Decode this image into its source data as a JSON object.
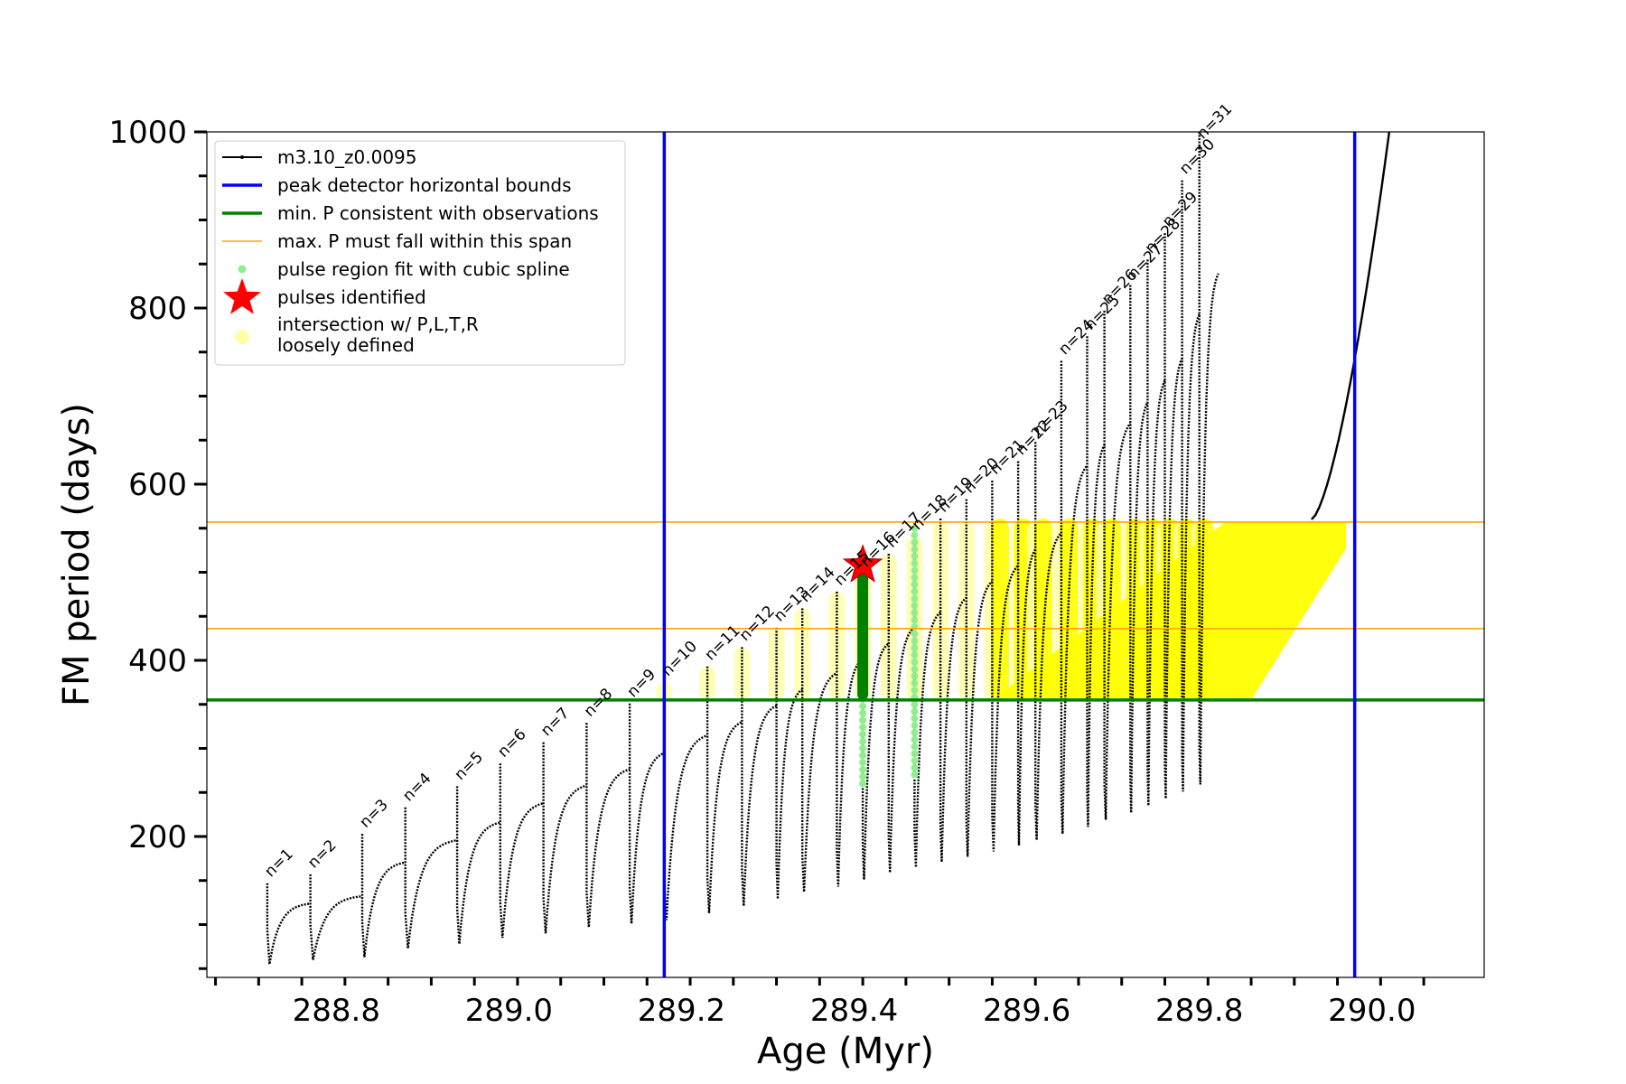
{
  "chart_data": {
    "type": "scatter",
    "xlabel": "Age (Myr)",
    "ylabel": "FM period (days)",
    "xlim": [
      288.65,
      290.13
    ],
    "ylim": [
      40,
      1000
    ],
    "x_ticks": [
      288.8,
      289.0,
      289.2,
      289.4,
      289.6,
      289.8,
      290.0
    ],
    "x_tick_labels": [
      "288.8",
      "289.0",
      "289.2",
      "289.4",
      "289.6",
      "289.8",
      "290.0"
    ],
    "y_ticks": [
      200,
      400,
      600,
      800,
      1000
    ],
    "y_tick_labels": [
      "200",
      "400",
      "600",
      "800",
      "1000"
    ],
    "grid": false,
    "legend_position": "top-left",
    "legend": [
      {
        "label": "m3.10_z0.0095",
        "style": "line-marker",
        "color": "#000000"
      },
      {
        "label": "peak detector horizontal bounds",
        "style": "line",
        "color": "#0000ff"
      },
      {
        "label": "min. P consistent with observations",
        "style": "line",
        "color": "#008000"
      },
      {
        "label": "max. P must fall within this span",
        "style": "line",
        "color": "#ffa500"
      },
      {
        "label": "pulse region fit with cubic spline",
        "style": "dot",
        "color": "#90ee90"
      },
      {
        "label": "pulses identified",
        "style": "star",
        "color": "#ff0000"
      },
      {
        "label": "intersection w/ P,L,T,R",
        "style": "blob",
        "color": "#ffffaa"
      },
      {
        "label": "loosely defined",
        "style": "text",
        "color": "#000000"
      }
    ],
    "vertical_lines": [
      {
        "name": "peak detector horizontal bounds",
        "x": 289.18,
        "color": "#0000ff"
      },
      {
        "name": "peak detector horizontal bounds",
        "x": 289.98,
        "color": "#0000ff"
      }
    ],
    "horizontal_lines": [
      {
        "name": "min. P consistent with observations",
        "y": 355,
        "color": "#008000"
      },
      {
        "name": "max. P must fall within this span",
        "y": 436,
        "color": "#ffa500"
      },
      {
        "name": "max. P must fall within this span",
        "y": 557,
        "color": "#ffa500"
      }
    ],
    "pulses": [
      {
        "label": "n=1",
        "x": 288.72,
        "peak": 147,
        "min": 55
      },
      {
        "label": "n=2",
        "x": 288.77,
        "peak": 157,
        "min": 60
      },
      {
        "label": "n=3",
        "x": 288.83,
        "peak": 203,
        "min": 63
      },
      {
        "label": "n=4",
        "x": 288.88,
        "peak": 233,
        "min": 73
      },
      {
        "label": "n=5",
        "x": 288.94,
        "peak": 257,
        "min": 78
      },
      {
        "label": "n=6",
        "x": 288.99,
        "peak": 283,
        "min": 85
      },
      {
        "label": "n=7",
        "x": 289.04,
        "peak": 307,
        "min": 90
      },
      {
        "label": "n=8",
        "x": 289.09,
        "peak": 329,
        "min": 97
      },
      {
        "label": "n=9",
        "x": 289.14,
        "peak": 351,
        "min": 101
      },
      {
        "label": "n=10",
        "x": 289.18,
        "peak": 375,
        "min": 105
      },
      {
        "label": "n=11",
        "x": 289.23,
        "peak": 393,
        "min": 113
      },
      {
        "label": "n=12",
        "x": 289.27,
        "peak": 415,
        "min": 121
      },
      {
        "label": "n=13",
        "x": 289.31,
        "peak": 437,
        "min": 129
      },
      {
        "label": "n=14",
        "x": 289.34,
        "peak": 459,
        "min": 137
      },
      {
        "label": "n=15",
        "x": 289.38,
        "peak": 478,
        "min": 143
      },
      {
        "label": "n=16",
        "x": 289.41,
        "peak": 499,
        "min": 151
      },
      {
        "label": "n=17",
        "x": 289.44,
        "peak": 521,
        "min": 159
      },
      {
        "label": "n=18",
        "x": 289.47,
        "peak": 541,
        "min": 165
      },
      {
        "label": "n=19",
        "x": 289.5,
        "peak": 561,
        "min": 171
      },
      {
        "label": "n=20",
        "x": 289.53,
        "peak": 583,
        "min": 177
      },
      {
        "label": "n=21",
        "x": 289.56,
        "peak": 604,
        "min": 183
      },
      {
        "label": "n=22",
        "x": 289.59,
        "peak": 626,
        "min": 190
      },
      {
        "label": "n=23",
        "x": 289.61,
        "peak": 648,
        "min": 196
      },
      {
        "label": "n=24",
        "x": 289.64,
        "peak": 740,
        "min": 203
      },
      {
        "label": "n=25",
        "x": 289.67,
        "peak": 768,
        "min": 211
      },
      {
        "label": "n=26",
        "x": 289.69,
        "peak": 797,
        "min": 219
      },
      {
        "label": "n=27",
        "x": 289.72,
        "peak": 826,
        "min": 227
      },
      {
        "label": "n=28",
        "x": 289.74,
        "peak": 855,
        "min": 235
      },
      {
        "label": "n=29",
        "x": 289.76,
        "peak": 885,
        "min": 243
      },
      {
        "label": "n=30",
        "x": 289.78,
        "peak": 945,
        "min": 251
      },
      {
        "label": "n=31",
        "x": 289.8,
        "peak": 1000,
        "min": 259
      }
    ],
    "pulses_identified": [
      {
        "x": 289.41,
        "y": 508
      }
    ]
  }
}
